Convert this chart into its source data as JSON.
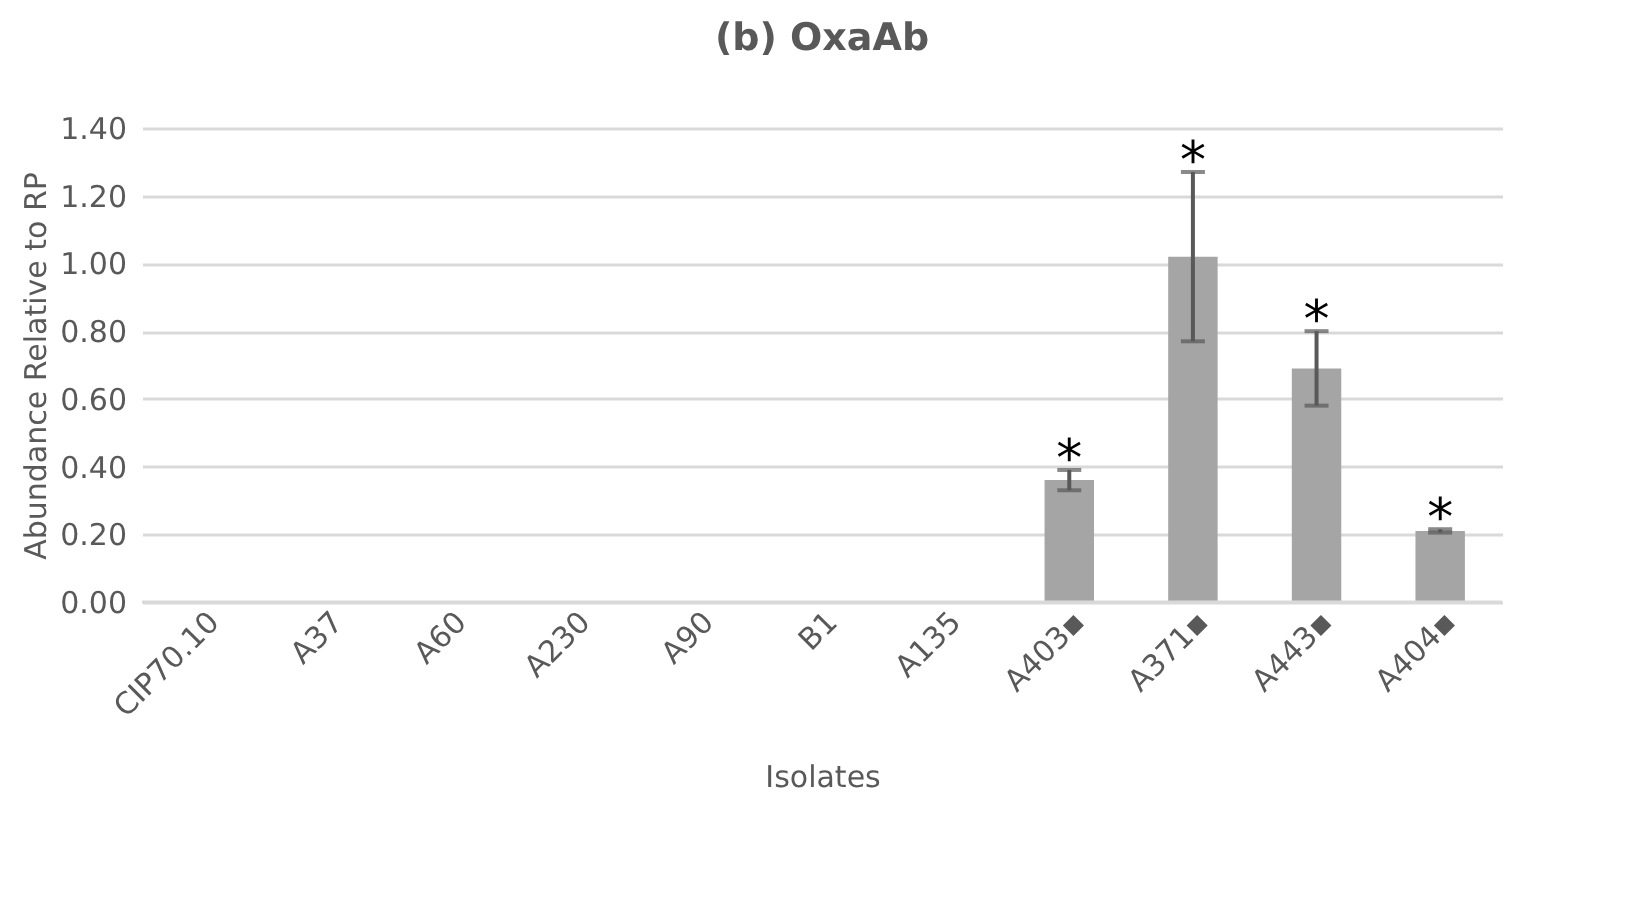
{
  "chart_data": {
    "type": "bar",
    "title": "(b) OxaAb",
    "xlabel": "Isolates",
    "ylabel": "Abundance Relative to RP",
    "categories": [
      "CIP70.10",
      "A37",
      "A60",
      "A230",
      "A90",
      "B1",
      "A135",
      "A403▪",
      "A371▪",
      "A443▪",
      "A404▪"
    ],
    "series": [
      {
        "color": "#a5a5a5",
        "values": [
          0,
          0,
          0,
          0,
          0,
          0,
          0,
          0.36,
          1.02,
          0.69,
          0.21
        ],
        "errors": [
          null,
          null,
          null,
          null,
          null,
          null,
          null,
          0.03,
          0.25,
          0.11,
          0.005
        ]
      }
    ],
    "ylim": [
      0,
      1.4
    ],
    "yticks": [
      {
        "value": 0,
        "label": "0.00"
      },
      {
        "value": 0.2,
        "label": "0.20"
      },
      {
        "value": 0.4,
        "label": "0.40"
      },
      {
        "value": 0.6,
        "label": "0.60"
      },
      {
        "value": 0.8,
        "label": "0.80"
      },
      {
        "value": 1.0,
        "label": "1.00"
      },
      {
        "value": 1.2,
        "label": "1.20"
      },
      {
        "value": 1.4,
        "label": "1.40"
      }
    ],
    "grid": "y",
    "annotations": [
      {
        "text": "*",
        "x": "A403▪",
        "y": 0.39
      },
      {
        "text": "*",
        "x": "A371▪",
        "y": 1.27
      },
      {
        "text": "*",
        "x": "A443▪",
        "y": 0.8
      },
      {
        "text": "*",
        "x": "A404▪",
        "y": 0.215
      }
    ]
  }
}
